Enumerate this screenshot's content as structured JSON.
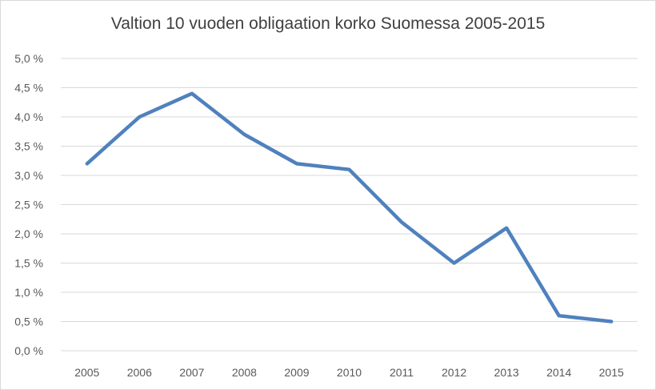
{
  "chart_data": {
    "type": "line",
    "title": "Valtion 10 vuoden obligaation korko Suomessa 2005-2015",
    "xlabel": "",
    "ylabel": "",
    "categories": [
      "2005",
      "2006",
      "2007",
      "2008",
      "2009",
      "2010",
      "2011",
      "2012",
      "2013",
      "2014",
      "2015"
    ],
    "series": [
      {
        "values": [
          3.2,
          4.0,
          4.4,
          3.7,
          3.2,
          3.1,
          2.2,
          1.5,
          2.1,
          0.6,
          0.5
        ]
      }
    ],
    "ylim": [
      0,
      5
    ],
    "yticks": [
      "0,0 %",
      "0,5 %",
      "1,0 %",
      "1,5 %",
      "2,0 %",
      "2,5 %",
      "3,0 %",
      "3,5 %",
      "4,0 %",
      "4,5 %",
      "5,0 %"
    ],
    "grid": true,
    "line_color": "#4f81bd",
    "grid_color": "#d9d9d9"
  }
}
